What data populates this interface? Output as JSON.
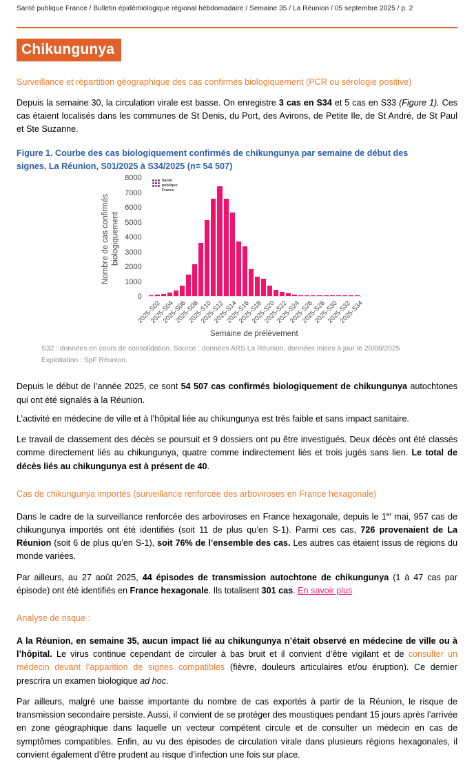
{
  "page": {
    "header": "Santé publique France / Bulletin épidémiologique régional hébdomadaire / Semaine 35 / La Réunion / 05 septembre 2025 / p. 2",
    "title": "Chikungunya"
  },
  "colors": {
    "accent_orange": "#e2612b",
    "heading_orange": "#ed7d31",
    "figure_blue": "#2a5ca8",
    "bar_pink": "#f0136b",
    "link_pink": "#ec1c77",
    "footnote_gray": "#8c8c8c"
  },
  "sections": {
    "surveillance_heading": "Surveillance et répartition géographique des cas confirmés biologiquement (PCR ou sérologie positive)",
    "p1": [
      {
        "t": "Depuis la semaine 30, la circulation virale est basse. On enregistre "
      },
      {
        "t": "3 cas en S34",
        "b": true
      },
      {
        "t": " et 5 cas en S33 "
      },
      {
        "t": "(Figure 1).",
        "i": true
      },
      {
        "t": " Ces cas étaient localisés dans les communes de St Denis, du Port, des Avirons, de Petite Ile, de St André, de St Paul et Ste Suzanne."
      }
    ],
    "figure_title": "Figure 1. Courbe des cas biologiquement confirmés de chikungunya par semaine de début des signes, La Réunion, S01/2025 à S34/2025 (n= 54 507)",
    "figure_note": [
      "S32 : données en cours de consolidation. Source : données ARS La Réunion, données mises à jour le 20/08/2025",
      "Exploitation :  SpF Réunion."
    ],
    "p2": [
      {
        "t": "Depuis le début de l’année 2025, ce sont "
      },
      {
        "t": "54 507 cas confirmés biologiquement de chikungunya",
        "b": true
      },
      {
        "t": " autochtones qui ont été signalés à la Réunion."
      }
    ],
    "p2b": [
      {
        "t": "L’activité en médecine de ville et à l’hôpital liée au chikungunya est très faible et sans impact sanitaire."
      }
    ],
    "p3": [
      {
        "t": "Le travail de classement des décès se poursuit et 9 dossiers ont pu être investigués. Deux décès ont été classés comme directement liés au chikungunya, quatre comme indirectement liés et trois jugés sans lien. "
      },
      {
        "t": "Le total de décès liés au chikungunya est à présent de 40",
        "b": true
      },
      {
        "t": "."
      }
    ],
    "imported_heading": "Cas de chikungunya importés (surveillance renforcée des arboviroses en France hexagonale)",
    "p4": [
      {
        "t": "Dans le cadre de la surveillance renforcée des arboviroses en France hexagonale, depuis le 1"
      },
      {
        "t": "er",
        "sup": true
      },
      {
        "t": " mai, 957 cas de chikungunya importés ont été identifiés (soit 11 de plus qu’en S-1). Parmi ces cas, "
      },
      {
        "t": "726 provenaient de La Réunion",
        "b": true
      },
      {
        "t": " (soit 6 de plus qu’en S-1), "
      },
      {
        "t": "soit 76% de l’ensemble des cas.",
        "b": true
      },
      {
        "t": " Les autres cas étaient issus de régions du monde variées."
      }
    ],
    "p5": [
      {
        "t": "Par ailleurs, au 27 août 2025, "
      },
      {
        "t": "44 épisodes de transmission autochtone de chikungunya",
        "b": true
      },
      {
        "t": " (1 à 47 cas par épisode) ont été identifiés en "
      },
      {
        "t": "France hexagonale",
        "b": true
      },
      {
        "t": ". Ils totalisent "
      },
      {
        "t": "301 cas",
        "b": true
      },
      {
        "t": ". "
      },
      {
        "t": "En savoir plus",
        "c": "link",
        "u": true,
        "name": "en-savoir-plus-link",
        "inter": true
      }
    ],
    "risk_heading": "Analyse de risque :",
    "p6": [
      {
        "t": "A la Réunion, en semaine 35, aucun impact lié au chikungunya n’était observé en médecine de ville ou à l’hôpital.",
        "b": true
      },
      {
        "t": " Le virus continue cependant de circuler à bas bruit et il convient d’être vigilant et de "
      },
      {
        "t": "consulter un médecin devant l’apparition de signes compatibles",
        "c": "orange"
      },
      {
        "t": " (fièvre, douleurs articulaires et/ou éruption). Ce dernier prescrira un examen biologique "
      },
      {
        "t": "ad hoc",
        "i": true
      },
      {
        "t": "."
      }
    ],
    "p7": [
      {
        "t": "Par ailleurs, malgré une baisse importante du nombre de cas exportés à partir de la Réunion, le risque de transmission secondaire persiste. Aussi, il convient de se protéger des moustiques pendant 15 jours après l’arrivée en zone géographique dans laquelle un vecteur compétent circule et de consulter un médecin en cas de symptômes compatibles. Enfin, au vu des épisodes de circulation virale dans plusieurs régions hexagonales, il convient également d’être prudent au risque d’infection une fois sur place."
      }
    ]
  },
  "chart_data": {
    "type": "bar",
    "title": "",
    "ylabel": "Nombre de cas confirmés biologiquement",
    "xlabel": "Semaine de prélèvement",
    "ylim": [
      0,
      8000
    ],
    "ytick_interval": 1000,
    "grid": false,
    "legend": "none",
    "logo_text": "Santé publique France",
    "categories": [
      "2025-S01",
      "2025-S02",
      "2025-S03",
      "2025-S04",
      "2025-S05",
      "2025-S06",
      "2025-S07",
      "2025-S08",
      "2025-S09",
      "2025-S10",
      "2025-S11",
      "2025-S12",
      "2025-S13",
      "2025-S14",
      "2025-S15",
      "2025-S16",
      "2025-S17",
      "2025-S18",
      "2025-S19",
      "2025-S20",
      "2025-S21",
      "2025-S22",
      "2025-S23",
      "2025-S24",
      "2025-S25",
      "2025-S26",
      "2025-S27",
      "2025-S28",
      "2025-S29",
      "2025-S30",
      "2025-S31",
      "2025-S32",
      "2025-S33",
      "2025-S34"
    ],
    "values": [
      60,
      90,
      160,
      230,
      370,
      730,
      1480,
      2180,
      3620,
      5150,
      6620,
      7450,
      6610,
      5690,
      3710,
      3390,
      1860,
      1340,
      1190,
      700,
      430,
      310,
      210,
      120,
      75,
      45,
      30,
      18,
      10,
      8,
      6,
      5,
      5,
      3
    ],
    "xticks_shown": [
      "2025-S02",
      "2025-S04",
      "2025-S06",
      "2025-S08",
      "2025-S10",
      "2025-S12",
      "2025-S14",
      "2025-S16",
      "2025-S18",
      "2025-S20",
      "2025-S22",
      "2025-S24",
      "2025-S26",
      "2025-S28",
      "2025-S30",
      "2025-S32",
      "2025-S34"
    ],
    "bar_color": "#f0136b",
    "total_n": "54 507"
  }
}
